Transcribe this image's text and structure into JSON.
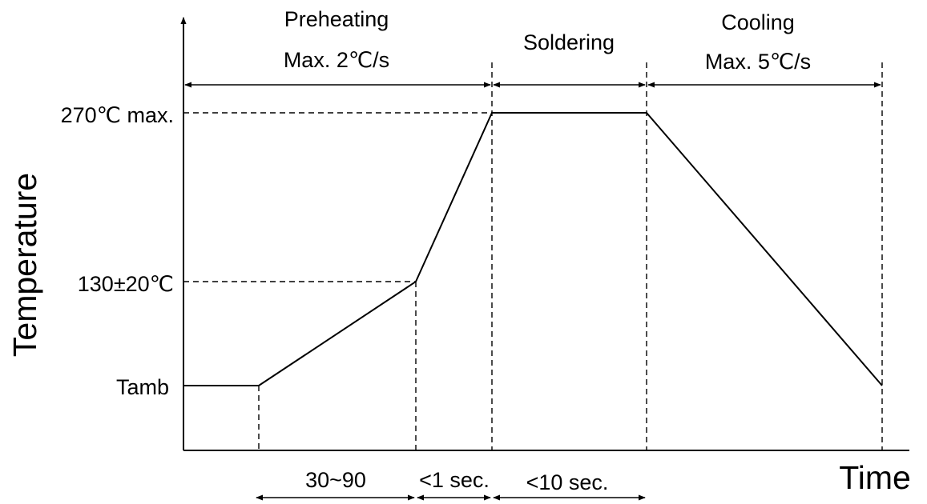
{
  "axes": {
    "y_label": "Temperature",
    "x_label": "Time"
  },
  "levels": {
    "peak": "270℃ max.",
    "preheat": "130±20℃",
    "ambient": "Tamb"
  },
  "phases": {
    "preheating": {
      "title": "Preheating",
      "rate": "Max. 2℃/s"
    },
    "soldering": {
      "title": "Soldering"
    },
    "cooling": {
      "title": "Cooling",
      "rate": "Max. 5℃/s"
    }
  },
  "durations": {
    "preheat": "30~90",
    "transition": "<1 sec.",
    "soldering": "<10 sec."
  }
}
